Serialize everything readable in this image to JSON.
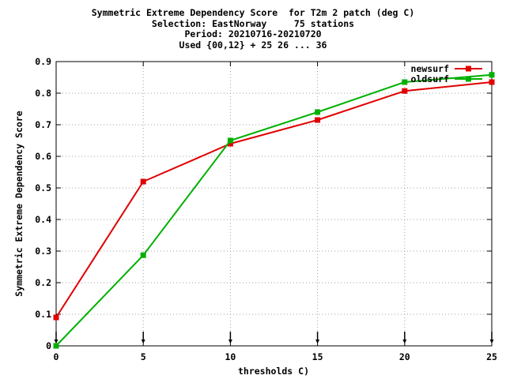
{
  "chart_data": {
    "type": "line",
    "title_lines": [
      "Symmetric Extreme Dependency Score  for T2m 2 patch (deg C)",
      "Selection: EastNorway     75 stations",
      "Period: 20210716-20210720",
      "Used {00,12} + 25 26 ... 36"
    ],
    "xlabel": "thresholds C)",
    "ylabel": "Symmetric Extreme Dependency Score",
    "xlim": [
      0,
      25
    ],
    "ylim": [
      0,
      0.9
    ],
    "xticks": [
      0,
      5,
      10,
      15,
      20,
      25
    ],
    "yticks": [
      0,
      0.1,
      0.2,
      0.3,
      0.4,
      0.5,
      0.6,
      0.7,
      0.8,
      0.9
    ],
    "ytick_labels": [
      "0",
      "0.1",
      "0.2",
      "0.3",
      "0.4",
      "0.5",
      "0.6",
      "0.7",
      "0.8",
      "0.9"
    ],
    "grid": true,
    "legend_position": "top-right",
    "series": [
      {
        "name": "newsurf",
        "color": "#e00000",
        "x": [
          0,
          5,
          10,
          15,
          20,
          25
        ],
        "y": [
          0.09,
          0.52,
          0.64,
          0.715,
          0.807,
          0.835
        ]
      },
      {
        "name": "oldsurf",
        "color": "#00b000",
        "x": [
          0,
          5,
          10,
          15,
          20,
          25
        ],
        "y": [
          0.0,
          0.287,
          0.65,
          0.74,
          0.835,
          0.858
        ]
      }
    ],
    "markers_x": [
      0,
      5,
      10,
      15,
      20,
      25
    ]
  }
}
